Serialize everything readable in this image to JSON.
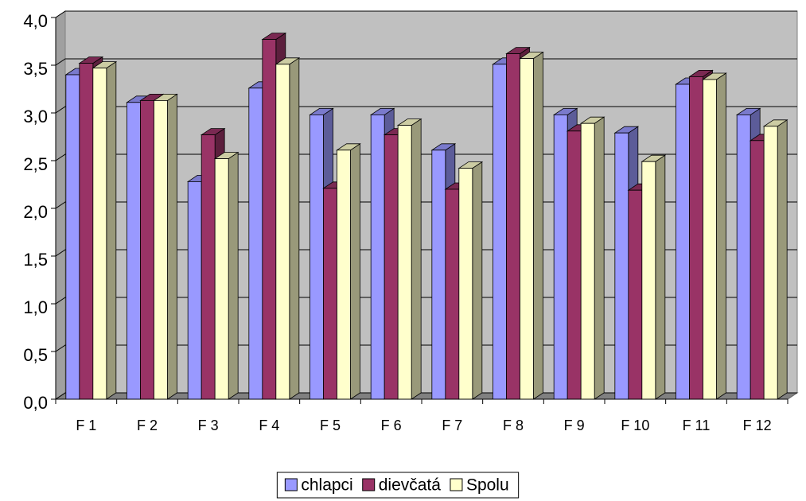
{
  "chart_data": {
    "type": "bar3d",
    "categories": [
      "F 1",
      "F 2",
      "F 3",
      "F 4",
      "F 5",
      "F 6",
      "F 7",
      "F 8",
      "F 9",
      "F 10",
      "F 11",
      "F 12"
    ],
    "series": [
      {
        "name": "chlapci",
        "color": "#9999ff",
        "values": [
          3.4,
          3.11,
          2.28,
          3.26,
          2.98,
          2.98,
          2.61,
          3.51,
          2.98,
          2.79,
          3.3,
          2.98
        ]
      },
      {
        "name": "dievčatá",
        "color": "#993366",
        "values": [
          3.52,
          3.13,
          2.77,
          3.77,
          2.21,
          2.77,
          2.2,
          3.62,
          2.81,
          2.19,
          3.38,
          2.71
        ]
      },
      {
        "name": "Spolu",
        "color": "#ffffcc",
        "values": [
          3.47,
          3.13,
          2.52,
          3.51,
          2.61,
          2.87,
          2.42,
          3.57,
          2.89,
          2.49,
          3.35,
          2.86
        ]
      }
    ],
    "ylim": [
      0,
      4
    ],
    "yticks": [
      {
        "value": 0,
        "label": "0,0"
      },
      {
        "value": 0.5,
        "label": "0,5"
      },
      {
        "value": 1,
        "label": "1,0"
      },
      {
        "value": 1.5,
        "label": "1,5"
      },
      {
        "value": 2,
        "label": "2,0"
      },
      {
        "value": 2.5,
        "label": "2,5"
      },
      {
        "value": 3,
        "label": "3,0"
      },
      {
        "value": 3.5,
        "label": "3,5"
      },
      {
        "value": 4,
        "label": "4,0"
      }
    ],
    "grid": true,
    "legend": "bottom"
  }
}
